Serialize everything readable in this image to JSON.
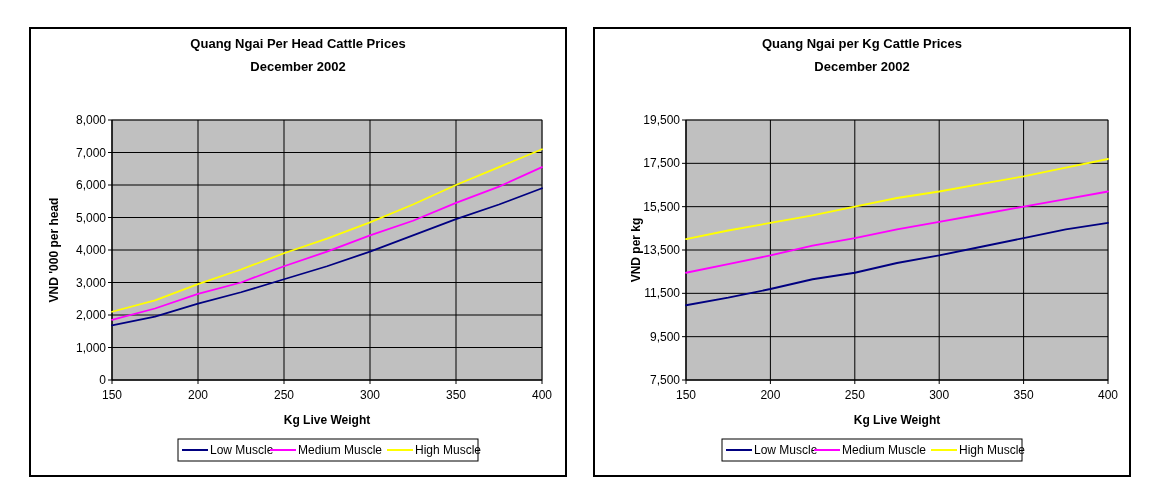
{
  "chart_data": [
    {
      "type": "line",
      "title": "Quang Ngai Per Head Cattle Prices",
      "subtitle": "December 2002",
      "xlabel": "Kg Live Weight",
      "ylabel": "VND '000 per head",
      "x": [
        150,
        175,
        200,
        225,
        250,
        275,
        300,
        325,
        350,
        375,
        400
      ],
      "xlim": [
        150,
        400
      ],
      "xticks": [
        150,
        200,
        250,
        300,
        350,
        400
      ],
      "ylim": [
        0,
        8000
      ],
      "yticks": [
        0,
        {
          "value": 1000,
          "label": "1,000"
        },
        {
          "value": 2000,
          "label": "2,000"
        },
        {
          "value": 3000,
          "label": "3,000"
        },
        {
          "value": 4000,
          "label": "4,000"
        },
        {
          "value": 5000,
          "label": "5,000"
        },
        {
          "value": 6000,
          "label": "6,000"
        },
        {
          "value": 7000,
          "label": "7,000"
        },
        {
          "value": 8000,
          "label": "8,000"
        }
      ],
      "grid": true,
      "legend": "bottom",
      "series": [
        {
          "name": "Low Muscle",
          "color": "#000080",
          "values": [
            1680,
            1950,
            2350,
            2700,
            3100,
            3500,
            3950,
            4450,
            4950,
            5400,
            5900
          ]
        },
        {
          "name": "Medium Muscle",
          "color": "#ff00ff",
          "values": [
            1850,
            2200,
            2650,
            3000,
            3500,
            3950,
            4450,
            4900,
            5450,
            5950,
            6550
          ]
        },
        {
          "name": "High Muscle",
          "color": "#ffff00",
          "values": [
            2100,
            2450,
            2950,
            3400,
            3900,
            4350,
            4850,
            5400,
            6000,
            6550,
            7100
          ]
        }
      ]
    },
    {
      "type": "line",
      "title": "Quang Ngai per Kg Cattle Prices",
      "subtitle": "December 2002",
      "xlabel": "Kg Live Weight",
      "ylabel": "VND per kg",
      "x": [
        150,
        175,
        200,
        225,
        250,
        275,
        300,
        325,
        350,
        375,
        400
      ],
      "xlim": [
        150,
        400
      ],
      "xticks": [
        150,
        200,
        250,
        300,
        350,
        400
      ],
      "ylim": [
        7500,
        19500
      ],
      "yticks": [
        {
          "value": 7500,
          "label": "7,500"
        },
        {
          "value": 9500,
          "label": "9,500"
        },
        {
          "value": 11500,
          "label": "11,500"
        },
        {
          "value": 13500,
          "label": "13,500"
        },
        {
          "value": 15500,
          "label": "15,500"
        },
        {
          "value": 17500,
          "label": "17,500"
        },
        {
          "value": 19500,
          "label": "19,500"
        }
      ],
      "grid": true,
      "legend": "bottom",
      "series": [
        {
          "name": "Low Muscle",
          "color": "#000080",
          "values": [
            10950,
            11300,
            11700,
            12150,
            12450,
            12900,
            13250,
            13650,
            14050,
            14450,
            14750
          ]
        },
        {
          "name": "Medium Muscle",
          "color": "#ff00ff",
          "values": [
            12450,
            12850,
            13250,
            13700,
            14050,
            14450,
            14800,
            15150,
            15500,
            15850,
            16200
          ]
        },
        {
          "name": "High Muscle",
          "color": "#ffff00",
          "values": [
            14000,
            14400,
            14750,
            15100,
            15500,
            15900,
            16200,
            16550,
            16900,
            17300,
            17700
          ]
        }
      ]
    }
  ]
}
